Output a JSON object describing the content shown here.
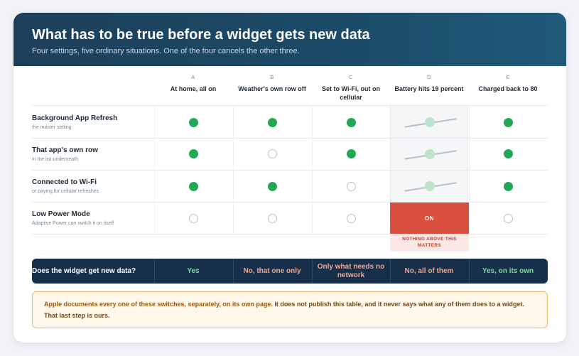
{
  "header": {
    "title": "What has to be true before a widget gets new data",
    "subtitle": "Four settings, five ordinary situations. One of the four cancels the other three."
  },
  "columns": [
    {
      "letter": "A",
      "title": "At home, all on"
    },
    {
      "letter": "B",
      "title": "Weather's own row off"
    },
    {
      "letter": "C",
      "title": "Set to Wi-Fi, out on cellular"
    },
    {
      "letter": "D",
      "title": "Battery hits 19 percent"
    },
    {
      "letter": "E",
      "title": "Charged back to 80"
    }
  ],
  "rows": [
    {
      "name": "Background App Refresh",
      "sub": "the master setting",
      "states": [
        "on",
        "on",
        "on",
        "ghost",
        "on"
      ]
    },
    {
      "name": "That app's own row",
      "sub": "in the list underneath",
      "states": [
        "on",
        "off",
        "on",
        "ghost",
        "on"
      ]
    },
    {
      "name": "Connected to Wi-Fi",
      "sub": "or paying for cellular refreshes",
      "states": [
        "on",
        "on",
        "off",
        "ghost",
        "on"
      ]
    },
    {
      "name": "Low Power Mode",
      "sub": "Adaptive Power can switch it on itself",
      "states": [
        "off",
        "off",
        "off",
        "on-label",
        "off"
      ]
    }
  ],
  "low_power_on_label": "ON",
  "low_power_note": "NOTHING ABOVE THIS MATTERS",
  "verdict": {
    "question": "Does the widget get new data?",
    "answers": [
      "Yes",
      "No, that one only",
      "Only what needs no network",
      "No, all of them",
      "Yes, on its own"
    ]
  },
  "note": {
    "emphasis": "Apple documents every one of these switches, separately, on its own page.",
    "rest": " It does not publish this table, and it never says what any of them does to a widget. That last step is ours."
  },
  "colors": {
    "header": "#1d3f5b",
    "on": "#22a855",
    "off_border": "#b8c1c9",
    "low_power_on": "#d9503f",
    "verdict_bg": "#172f48",
    "yes": "#7ddc9e",
    "no": "#f3a58e",
    "note_border": "#e8b86a"
  }
}
